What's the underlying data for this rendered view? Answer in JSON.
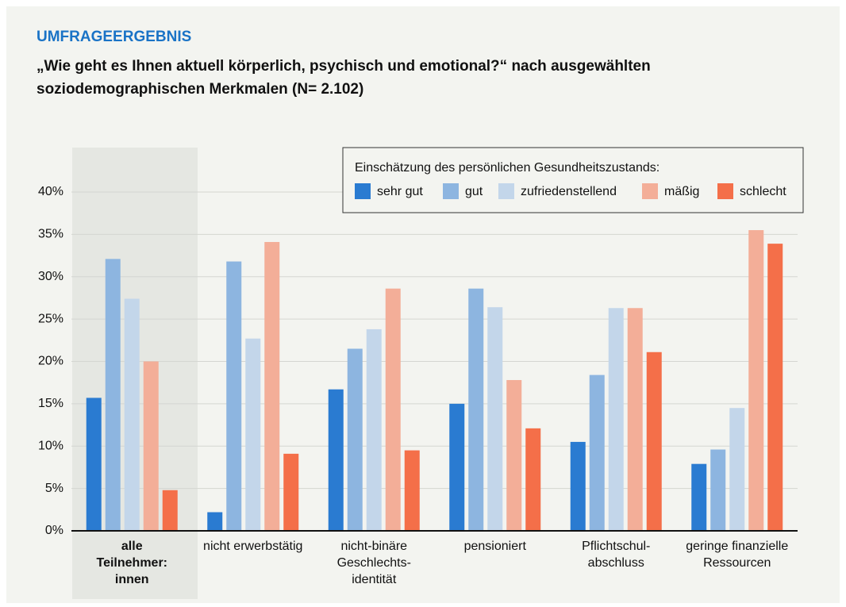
{
  "chart_data": {
    "type": "bar",
    "title": "UMFRAGEERGEBNIS",
    "subtitle": [
      "„Wie geht es Ihnen aktuell körperlich, psychisch und emotional?“ nach ausgewählten",
      "soziodemographischen Merkmalen (N= 2.102)"
    ],
    "legend_title": "Einschätzung des persönlichen Gesundheitszustands:",
    "categories": [
      [
        "alle",
        "Teilnehmer:",
        "innen"
      ],
      [
        "nicht erwerbstätig"
      ],
      [
        "nicht-binäre",
        "Geschlechts-",
        "identität"
      ],
      [
        "pensioniert"
      ],
      [
        "Pflichtschul-",
        "abschluss"
      ],
      [
        "geringe finanzielle",
        "Ressourcen"
      ]
    ],
    "series": [
      {
        "name": "sehr gut",
        "color": "#2a7bd1",
        "values": [
          15.7,
          2.2,
          16.7,
          15.0,
          10.5,
          7.9
        ]
      },
      {
        "name": "gut",
        "color": "#8db5e0",
        "values": [
          32.1,
          31.8,
          21.5,
          28.6,
          18.4,
          9.6
        ]
      },
      {
        "name": "zufriedenstellend",
        "color": "#c3d6ea",
        "values": [
          27.4,
          22.7,
          23.8,
          26.4,
          26.3,
          14.5
        ]
      },
      {
        "name": "mäßig",
        "color": "#f3ae98",
        "values": [
          20.0,
          34.1,
          28.6,
          17.8,
          26.3,
          35.5
        ]
      },
      {
        "name": "schlecht",
        "color": "#f46f49",
        "values": [
          4.8,
          9.1,
          9.5,
          12.1,
          21.1,
          33.9
        ]
      }
    ],
    "ylim": [
      0,
      44
    ],
    "yticks": [
      {
        "value": 0,
        "label": "0%"
      },
      {
        "value": 5,
        "label": "5%"
      },
      {
        "value": 10,
        "label": "10%"
      },
      {
        "value": 15,
        "label": "15%"
      },
      {
        "value": 20,
        "label": "20%"
      },
      {
        "value": 25,
        "label": "25%"
      },
      {
        "value": 30,
        "label": "30%"
      },
      {
        "value": 35,
        "label": "35%"
      },
      {
        "value": 40,
        "label": "40%"
      }
    ],
    "grid": true
  }
}
